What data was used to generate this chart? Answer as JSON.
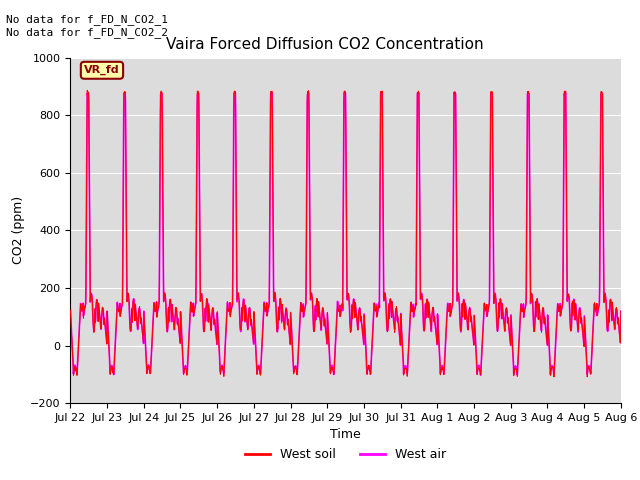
{
  "title": "Vaira Forced Diffusion CO2 Concentration",
  "xlabel": "Time",
  "ylabel": "CO2 (ppm)",
  "ylim": [
    -200,
    1000
  ],
  "yticks": [
    -200,
    0,
    200,
    400,
    600,
    800,
    1000
  ],
  "date_labels": [
    "Jul 22",
    "Jul 23",
    "Jul 24",
    "Jul 25",
    "Jul 26",
    "Jul 27",
    "Jul 28",
    "Jul 29",
    "Jul 30",
    "Jul 31",
    "Aug 1",
    "Aug 2",
    "Aug 3",
    "Aug 4",
    "Aug 5",
    "Aug 6"
  ],
  "n_days": 15,
  "annotation_text": "No data for f_FD_N_CO2_1\nNo data for f_FD_N_CO2_2",
  "legend_label_box": "VR_fd",
  "legend_soil": "West soil",
  "legend_air": "West air",
  "color_soil": "#ff0000",
  "color_air": "#ff00ff",
  "background_color": "#dcdcdc",
  "fig_background": "#ffffff",
  "title_fontsize": 11,
  "annotation_fontsize": 8,
  "axis_fontsize": 9,
  "tick_fontsize": 8,
  "linewidth_soil": 0.7,
  "linewidth_air": 1.2
}
